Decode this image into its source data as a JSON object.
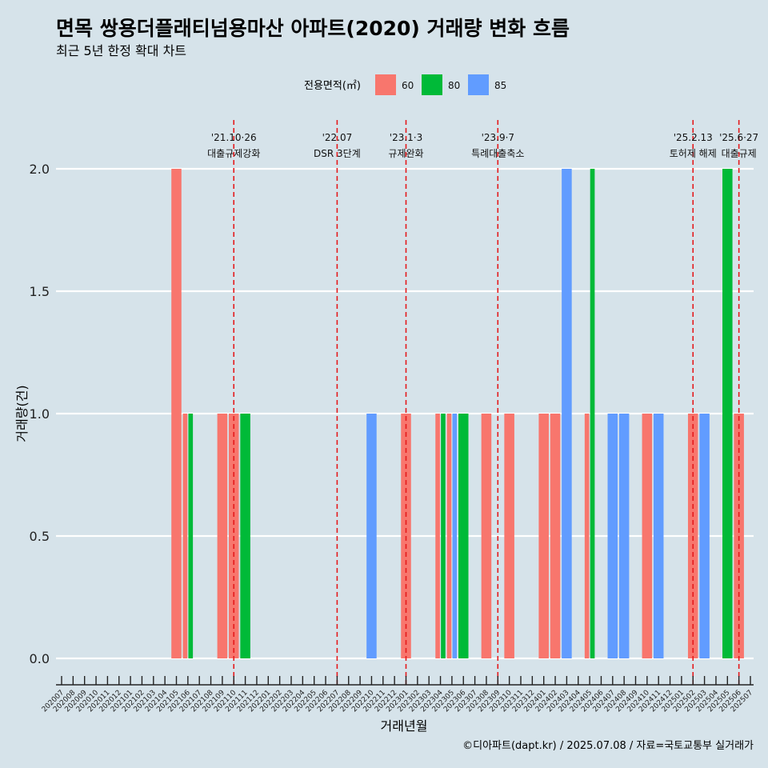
{
  "title": "면목 쌍용더플래티넘용마산 아파트(2020) 거래량 변화 흐름",
  "subtitle": "최근 5년 한정 확대 차트",
  "caption": "©디아파트(dapt.kr) / 2025.07.08 / 자료=국토교통부 실거래가",
  "legend": {
    "title": "전용면적(㎡)",
    "placement": "top"
  },
  "colors": {
    "background": "#d6e3ea",
    "grid": "#ffffff",
    "event_line": "#e41a1c"
  },
  "chart_data": {
    "type": "bar",
    "xlabel": "거래년월",
    "ylabel": "거래량(건)",
    "ylim": [
      0,
      2.15
    ],
    "yticks": [
      "0.0",
      "0.5",
      "1.0",
      "1.5",
      "2.0"
    ],
    "grid": true,
    "categories": [
      "202007",
      "202008",
      "202009",
      "202010",
      "202011",
      "202012",
      "202101",
      "202102",
      "202103",
      "202104",
      "202105",
      "202106",
      "202107",
      "202108",
      "202109",
      "202110",
      "202111",
      "202112",
      "202201",
      "202202",
      "202203",
      "202204",
      "202205",
      "202206",
      "202207",
      "202208",
      "202209",
      "202210",
      "202211",
      "202212",
      "202301",
      "202302",
      "202303",
      "202304",
      "202305",
      "202306",
      "202307",
      "202308",
      "202309",
      "202310",
      "202311",
      "202312",
      "202401",
      "202402",
      "202403",
      "202404",
      "202405",
      "202406",
      "202407",
      "202408",
      "202409",
      "202410",
      "202411",
      "202412",
      "202501",
      "202502",
      "202503",
      "202504",
      "202505",
      "202506",
      "202507"
    ],
    "series": [
      {
        "name": "60",
        "color": "#f8766d",
        "values": [
          0,
          0,
          0,
          0,
          0,
          0,
          0,
          0,
          0,
          0,
          2,
          1,
          0,
          0,
          1,
          1,
          0,
          0,
          0,
          0,
          0,
          0,
          0,
          0,
          0,
          0,
          0,
          0,
          0,
          0,
          1,
          0,
          0,
          1,
          1,
          0,
          0,
          1,
          0,
          1,
          0,
          0,
          1,
          1,
          0,
          0,
          1,
          0,
          0,
          0,
          0,
          1,
          0,
          0,
          0,
          1,
          0,
          0,
          0,
          1,
          0
        ]
      },
      {
        "name": "80",
        "color": "#00ba38",
        "values": [
          0,
          0,
          0,
          0,
          0,
          0,
          0,
          0,
          0,
          0,
          0,
          1,
          0,
          0,
          0,
          0,
          1,
          0,
          0,
          0,
          0,
          0,
          0,
          0,
          0,
          0,
          0,
          0,
          0,
          0,
          0,
          0,
          0,
          1,
          0,
          1,
          0,
          0,
          0,
          0,
          0,
          0,
          0,
          0,
          0,
          0,
          2,
          0,
          0,
          0,
          0,
          0,
          0,
          0,
          0,
          0,
          0,
          0,
          2,
          0,
          0
        ]
      },
      {
        "name": "85",
        "color": "#619cff",
        "values": [
          0,
          0,
          0,
          0,
          0,
          0,
          0,
          0,
          0,
          0,
          0,
          0,
          0,
          0,
          0,
          0,
          0,
          0,
          0,
          0,
          0,
          0,
          0,
          0,
          0,
          0,
          0,
          1,
          0,
          0,
          0,
          0,
          0,
          0,
          1,
          0,
          0,
          0,
          0,
          0,
          0,
          0,
          0,
          0,
          2,
          0,
          0,
          0,
          1,
          1,
          0,
          0,
          1,
          0,
          0,
          0,
          1,
          0,
          0,
          0,
          0
        ]
      }
    ],
    "events": [
      {
        "x": 15.0,
        "date": "'21.10·26",
        "label": "대출규제강화"
      },
      {
        "x": 24.0,
        "date": "'22.07",
        "label": "DSR 3단계"
      },
      {
        "x": 30.0,
        "date": "'23.1·3",
        "label": "규제완화"
      },
      {
        "x": 38.0,
        "date": "'23.9·7",
        "label": "특례대출축소"
      },
      {
        "x": 55.0,
        "date": "'25.2.13",
        "label": "토허제 해제"
      },
      {
        "x": 59.0,
        "date": "'25.6·27",
        "label": "대출규제"
      }
    ]
  }
}
